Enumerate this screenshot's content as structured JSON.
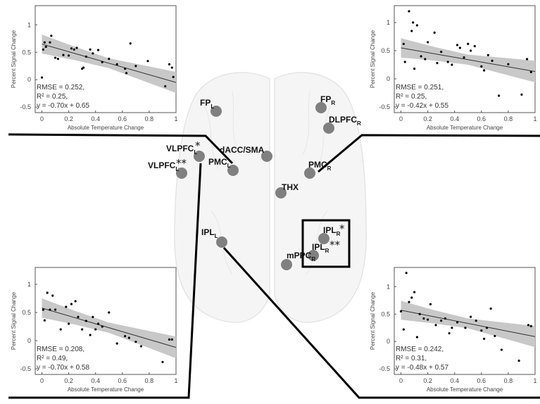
{
  "rois": [
    {
      "id": "fp-l",
      "label": "FP",
      "sub": "L",
      "star": ""
    },
    {
      "id": "fp-r",
      "label": "FP",
      "sub": "R",
      "star": ""
    },
    {
      "id": "dlpfc-r",
      "label": "DLPFC",
      "sub": "R",
      "star": ""
    },
    {
      "id": "vlpfc-l-upper",
      "label": "VLPFC",
      "sub": "L",
      "star": "*"
    },
    {
      "id": "vlpfc-l-lower",
      "label": "VLPFC",
      "sub": "L",
      "star": "**"
    },
    {
      "id": "dacc-sma",
      "label": "dACC/SMA",
      "sub": "",
      "star": ""
    },
    {
      "id": "pmc-l",
      "label": "PMC",
      "sub": "L",
      "star": ""
    },
    {
      "id": "pmc-r",
      "label": "PMC",
      "sub": "R",
      "star": ""
    },
    {
      "id": "thx",
      "label": "THX",
      "sub": "",
      "star": ""
    },
    {
      "id": "ipl-l",
      "label": "IPL",
      "sub": "L",
      "star": ""
    },
    {
      "id": "ipl-r-upper",
      "label": "IPL",
      "sub": "R",
      "star": "*"
    },
    {
      "id": "ipl-r-lower",
      "label": "IPL",
      "sub": "R",
      "star": "**"
    },
    {
      "id": "mppc-r",
      "label": "mPPC",
      "sub": "R",
      "star": ""
    }
  ],
  "chart_data": [
    {
      "type": "scatter",
      "panel": "top-left",
      "xlabel": "Absolute Temperature Change",
      "ylabel": "Percent Signal Change",
      "xlim": [
        -0.05,
        1.0
      ],
      "ylim": [
        -0.6,
        1.35
      ],
      "xticks": [
        "0",
        "0.2",
        "0.4",
        "0.6",
        "0.8",
        "1"
      ],
      "yticks": [
        "-0.5",
        "0",
        "0.5",
        "1"
      ],
      "rmse": "RMSE = 0.252,",
      "r2": "R² = 0.25,",
      "equation": "y = -0.70x + 0.65",
      "fit": {
        "slope": -0.7,
        "intercept": 0.65
      },
      "points": [
        [
          0.0,
          0.04
        ],
        [
          0.01,
          0.55
        ],
        [
          0.02,
          0.68
        ],
        [
          0.03,
          0.6
        ],
        [
          0.06,
          0.68
        ],
        [
          0.07,
          0.8
        ],
        [
          0.1,
          0.4
        ],
        [
          0.12,
          0.38
        ],
        [
          0.16,
          0.45
        ],
        [
          0.2,
          0.44
        ],
        [
          0.22,
          0.57
        ],
        [
          0.24,
          0.55
        ],
        [
          0.26,
          0.58
        ],
        [
          0.3,
          0.2
        ],
        [
          0.31,
          0.22
        ],
        [
          0.33,
          0.42
        ],
        [
          0.36,
          0.55
        ],
        [
          0.38,
          0.48
        ],
        [
          0.42,
          0.54
        ],
        [
          0.45,
          0.32
        ],
        [
          0.5,
          0.38
        ],
        [
          0.56,
          0.28
        ],
        [
          0.62,
          0.2
        ],
        [
          0.63,
          0.12
        ],
        [
          0.66,
          0.66
        ],
        [
          0.7,
          0.25
        ],
        [
          0.79,
          0.34
        ],
        [
          0.92,
          -0.12
        ],
        [
          0.95,
          0.28
        ],
        [
          0.97,
          0.22
        ],
        [
          0.98,
          0.05
        ]
      ]
    },
    {
      "type": "scatter",
      "panel": "top-right",
      "xlabel": "Absolute Temperature Change",
      "ylabel": "Percent Signal Change",
      "xlim": [
        -0.05,
        1.0
      ],
      "ylim": [
        -0.6,
        1.3
      ],
      "xticks": [
        "0",
        "0.2",
        "0.4",
        "0.6",
        "0.8",
        "1"
      ],
      "yticks": [
        "-0.5",
        "0",
        "0.5",
        "1"
      ],
      "rmse": "RMSE = 0.251,",
      "r2": "R² = 0.25,",
      "equation": "y = -0.42x + 0.55",
      "fit": {
        "slope": -0.42,
        "intercept": 0.55
      },
      "points": [
        [
          0.02,
          0.62
        ],
        [
          0.03,
          0.3
        ],
        [
          0.06,
          1.2
        ],
        [
          0.08,
          0.85
        ],
        [
          0.09,
          1.0
        ],
        [
          0.1,
          0.18
        ],
        [
          0.12,
          0.95
        ],
        [
          0.15,
          0.4
        ],
        [
          0.18,
          0.35
        ],
        [
          0.2,
          0.65
        ],
        [
          0.25,
          0.82
        ],
        [
          0.27,
          0.28
        ],
        [
          0.3,
          0.48
        ],
        [
          0.35,
          0.3
        ],
        [
          0.38,
          0.25
        ],
        [
          0.42,
          0.6
        ],
        [
          0.44,
          0.55
        ],
        [
          0.47,
          0.38
        ],
        [
          0.5,
          0.62
        ],
        [
          0.52,
          0.5
        ],
        [
          0.55,
          0.58
        ],
        [
          0.6,
          0.22
        ],
        [
          0.62,
          0.15
        ],
        [
          0.65,
          0.42
        ],
        [
          0.68,
          0.32
        ],
        [
          0.73,
          -0.3
        ],
        [
          0.8,
          0.26
        ],
        [
          0.9,
          -0.28
        ],
        [
          0.94,
          0.35
        ],
        [
          0.97,
          0.12
        ]
      ]
    },
    {
      "type": "scatter",
      "panel": "bottom-left",
      "xlabel": "Absolute Temperature Change",
      "ylabel": "Percent Signal Change",
      "xlim": [
        -0.05,
        1.0
      ],
      "ylim": [
        -0.6,
        1.3
      ],
      "xticks": [
        "0",
        "0.2",
        "0.4",
        "0.6",
        "0.8",
        "1"
      ],
      "yticks": [
        "-0.5",
        "0",
        "0.5",
        "1"
      ],
      "rmse": "RMSE = 0.208,",
      "r2": "R² = 0.49,",
      "equation": "y = -0.70x + 0.58",
      "fit": {
        "slope": -0.7,
        "intercept": 0.58
      },
      "points": [
        [
          0.01,
          0.55
        ],
        [
          0.02,
          0.36
        ],
        [
          0.04,
          0.85
        ],
        [
          0.06,
          0.55
        ],
        [
          0.08,
          0.8
        ],
        [
          0.1,
          0.55
        ],
        [
          0.14,
          0.2
        ],
        [
          0.18,
          0.6
        ],
        [
          0.2,
          0.3
        ],
        [
          0.22,
          0.65
        ],
        [
          0.25,
          0.7
        ],
        [
          0.27,
          0.42
        ],
        [
          0.3,
          0.2
        ],
        [
          0.33,
          0.35
        ],
        [
          0.36,
          0.1
        ],
        [
          0.38,
          0.42
        ],
        [
          0.4,
          0.2
        ],
        [
          0.42,
          0.3
        ],
        [
          0.45,
          0.25
        ],
        [
          0.5,
          0.5
        ],
        [
          0.56,
          -0.05
        ],
        [
          0.62,
          0.08
        ],
        [
          0.65,
          0.05
        ],
        [
          0.7,
          -0.02
        ],
        [
          0.74,
          -0.1
        ],
        [
          0.9,
          -0.38
        ],
        [
          0.95,
          0.02
        ],
        [
          0.97,
          0.02
        ]
      ]
    },
    {
      "type": "scatter",
      "panel": "bottom-right",
      "xlabel": "Absolute Temperature Change",
      "ylabel": "Percent Signal Change",
      "xlim": [
        -0.05,
        1.0
      ],
      "ylim": [
        -0.6,
        1.35
      ],
      "xticks": [
        "0",
        "0.2",
        "0.4",
        "0.6",
        "0.8",
        "1"
      ],
      "yticks": [
        "-0.5",
        "0",
        "0.5",
        "1"
      ],
      "rmse": "RMSE = 0.242,",
      "r2": "R² = 0.31,",
      "equation": "y = -0.48x + 0.57",
      "fit": {
        "slope": -0.48,
        "intercept": 0.57
      },
      "points": [
        [
          0.0,
          0.55
        ],
        [
          0.02,
          0.22
        ],
        [
          0.04,
          1.25
        ],
        [
          0.06,
          0.72
        ],
        [
          0.08,
          0.8
        ],
        [
          0.1,
          0.9
        ],
        [
          0.12,
          0.08
        ],
        [
          0.14,
          0.5
        ],
        [
          0.17,
          0.42
        ],
        [
          0.2,
          0.4
        ],
        [
          0.22,
          0.68
        ],
        [
          0.26,
          0.3
        ],
        [
          0.3,
          0.38
        ],
        [
          0.33,
          0.42
        ],
        [
          0.36,
          0.15
        ],
        [
          0.38,
          0.25
        ],
        [
          0.42,
          0.35
        ],
        [
          0.48,
          0.25
        ],
        [
          0.52,
          0.45
        ],
        [
          0.56,
          0.38
        ],
        [
          0.6,
          0.2
        ],
        [
          0.62,
          0.05
        ],
        [
          0.64,
          0.25
        ],
        [
          0.67,
          0.6
        ],
        [
          0.7,
          0.1
        ],
        [
          0.75,
          -0.15
        ],
        [
          0.88,
          -0.35
        ],
        [
          0.95,
          0.3
        ],
        [
          0.97,
          0.28
        ]
      ]
    }
  ]
}
